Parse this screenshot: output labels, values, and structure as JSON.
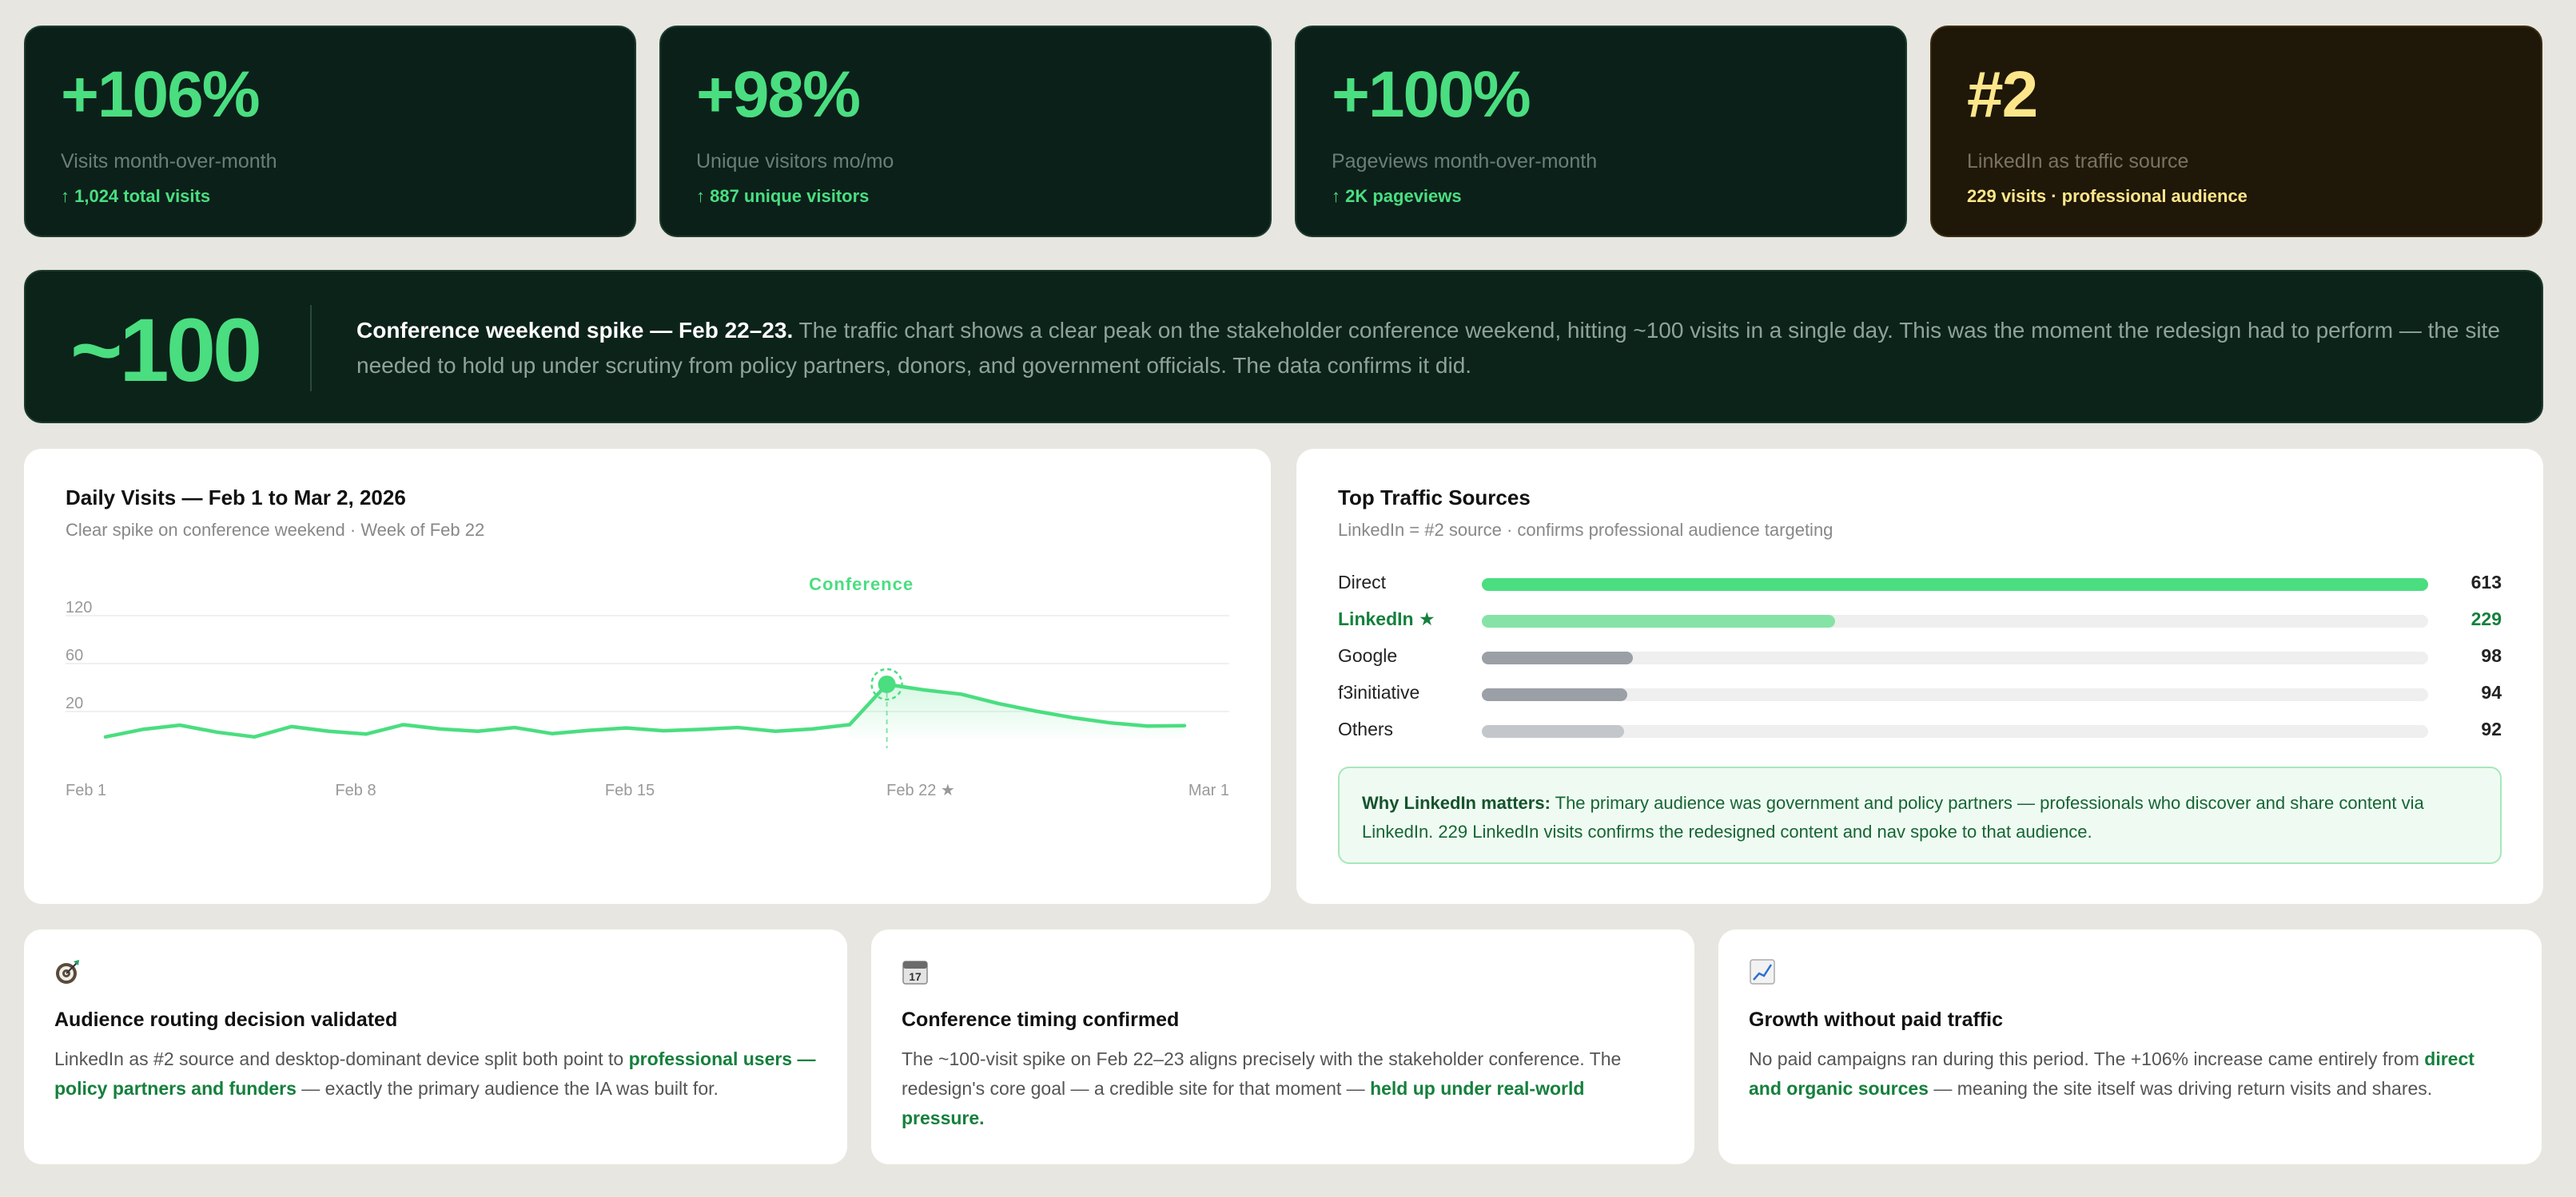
{
  "stats": [
    {
      "value": "+106%",
      "label": "Visits month-over-month",
      "sub": "↑ 1,024 total visits"
    },
    {
      "value": "+98%",
      "label": "Unique visitors mo/mo",
      "sub": "↑ 887 unique visitors"
    },
    {
      "value": "+100%",
      "label": "Pageviews month-over-month",
      "sub": "↑ 2K pageviews"
    },
    {
      "value": "#2",
      "label": "LinkedIn as traffic source",
      "sub": "229 visits · professional audience"
    }
  ],
  "callout": {
    "value": "~100",
    "headline": "Conference weekend spike — Feb 22–23.",
    "text": " The traffic chart shows a clear peak on the stakeholder conference weekend, hitting ~100 visits in a single day. This was the moment the redesign had to perform — the site needed to hold up under scrutiny from policy partners, donors, and government officials. The data confirms it did."
  },
  "chart_panel": {
    "title": "Daily Visits — Feb 1 to Mar 2, 2026",
    "subtitle": "Clear spike on conference weekend · Week of Feb 22"
  },
  "chart_data": {
    "type": "area",
    "title": "Daily Visits — Feb 1 to Mar 2, 2026",
    "x_ticks": [
      "Feb 1",
      "Feb 8",
      "Feb 15",
      "Feb 22 ★",
      "Mar 1"
    ],
    "y_ticks": [
      "120",
      "60",
      "20"
    ],
    "series": [
      {
        "values": [
          2,
          18,
          27,
          12,
          2,
          24,
          14,
          8,
          28,
          19,
          14,
          22,
          9,
          16,
          21,
          15,
          18,
          22,
          14,
          19,
          28,
          114,
          102,
          93,
          73,
          57,
          43,
          32,
          25,
          26
        ]
      }
    ],
    "annotation": {
      "label": "Conference",
      "index": 21
    },
    "accent_color": "#4ade80"
  },
  "sources_panel": {
    "title": "Top Traffic Sources",
    "subtitle": "LinkedIn = #2 source · confirms professional audience targeting",
    "why_label": "Why LinkedIn matters:",
    "why_text": " The primary audience was government and policy partners — professionals who discover and share content via LinkedIn. 229 LinkedIn visits confirms the redesigned content and nav spoke to that audience."
  },
  "sources_data": {
    "type": "bar",
    "max": 613,
    "items": [
      {
        "name": "Direct",
        "value": 613,
        "display": "613",
        "color": "#4ade80"
      },
      {
        "name": "LinkedIn ★",
        "value": 229,
        "display": "229",
        "color": "#86e3a6"
      },
      {
        "name": "Google",
        "value": 98,
        "display": "98",
        "color": "#9aa0a6"
      },
      {
        "name": "f3initiative",
        "value": 94,
        "display": "94",
        "color": "#9aa0a6"
      },
      {
        "name": "Others",
        "value": 92,
        "display": "92",
        "color": "#c3c7cb"
      }
    ]
  },
  "cards": [
    {
      "icon": "target-icon",
      "title": "Audience routing decision validated",
      "body_a": "LinkedIn as #2 source and desktop-dominant device split both point to ",
      "body_b": "professional users — policy partners and funders",
      "body_c": " — exactly the primary audience the IA was built for."
    },
    {
      "icon": "calendar-icon",
      "icon_text": "17",
      "title": "Conference timing confirmed",
      "body_a": "The ~100-visit spike on Feb 22–23 aligns precisely with the stakeholder conference. The redesign's core goal — a credible site for that moment — ",
      "body_b": "held up under real-world pressure.",
      "body_c": ""
    },
    {
      "icon": "chart-up-icon",
      "title": "Growth without paid traffic",
      "body_a": "No paid campaigns ran during this period. The +106% increase came entirely from ",
      "body_b": "direct and organic sources",
      "body_c": " — meaning the site itself was driving return visits and shares."
    }
  ]
}
